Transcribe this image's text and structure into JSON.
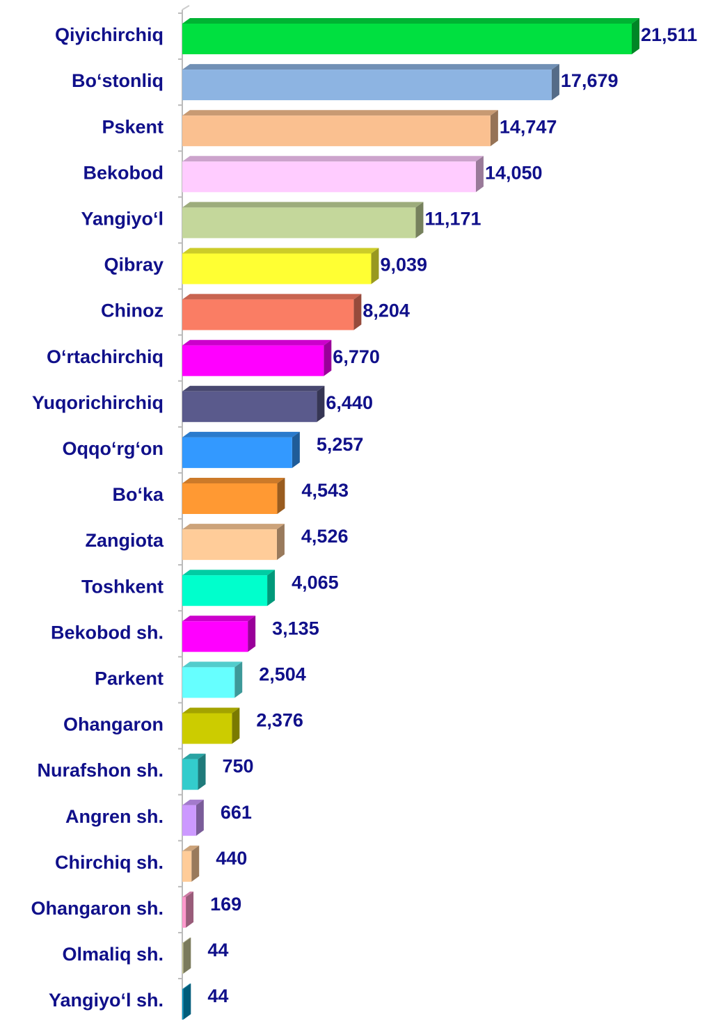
{
  "chart_data": {
    "type": "bar3d",
    "categories": [
      "Qiyichirchiq",
      "Bo‘stonliq",
      "Pskent",
      "Bekobod",
      "Yangiyo‘l",
      "Qibray",
      "Chinoz",
      "O‘rtachirchiq",
      "Yuqorichirchiq",
      "Oqqo‘rg‘on",
      "Bo‘ka",
      "Zangiota",
      "Toshkent",
      "Bekobod sh.",
      "Parkent",
      "Ohangaron",
      "Nurafshon sh.",
      "Angren sh.",
      "Chirchiq sh.",
      "Ohangaron sh.",
      "Olmaliq sh.",
      "Yangiyo‘l sh."
    ],
    "values": [
      21511,
      17679,
      14747,
      14050,
      11171,
      9039,
      8204,
      6770,
      6440,
      5257,
      4543,
      4526,
      4065,
      3135,
      2504,
      2376,
      750,
      661,
      440,
      169,
      44,
      44
    ],
    "value_labels": [
      "21,511",
      "17,679",
      "14,747",
      "14,050",
      "11,171",
      "9,039",
      "8,204",
      "6,770",
      "6,440",
      "5,257",
      "4,543",
      "4,526",
      "4,065",
      "3,135",
      "2,504",
      "2,376",
      "750",
      "661",
      "440",
      "169",
      "44",
      "44"
    ],
    "colors": [
      "#00e040",
      "#8db4e2",
      "#fac090",
      "#ffccff",
      "#c4d79b",
      "#ffff33",
      "#fa7d64",
      "#ff00ff",
      "#5a5a8c",
      "#3399ff",
      "#ff9933",
      "#ffcc99",
      "#00ffcc",
      "#ff00ff",
      "#66ffff",
      "#cccc00",
      "#33cccc",
      "#cc99ff",
      "#ffcc99",
      "#ff99cc",
      "#cccc99",
      "#0099cc"
    ]
  }
}
